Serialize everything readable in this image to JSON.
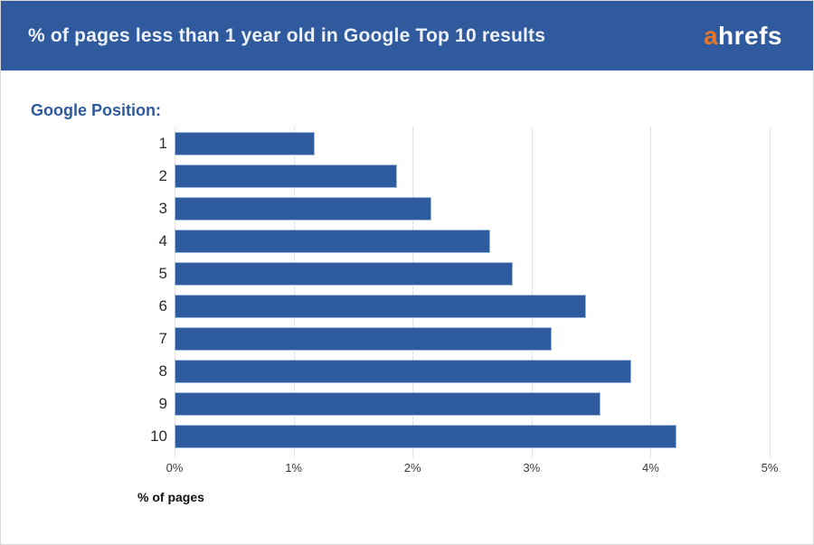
{
  "header": {
    "title": "% of pages less than 1 year old in Google Top 10 results",
    "logo_a": "a",
    "logo_rest": "hrefs"
  },
  "axis_group_label": "Google Position:",
  "chart_data": {
    "type": "bar",
    "orientation": "horizontal",
    "title": "% of pages less than 1 year old in Google Top 10 results",
    "ylabel": "Google Position",
    "xlabel": "% of pages",
    "categories": [
      "1",
      "2",
      "3",
      "4",
      "5",
      "6",
      "7",
      "8",
      "9",
      "10"
    ],
    "values": [
      1.18,
      1.87,
      2.16,
      2.65,
      2.84,
      3.46,
      3.17,
      3.84,
      3.58,
      4.22
    ],
    "xlim": [
      0,
      5
    ],
    "x_ticks": [
      "0%",
      "1%",
      "2%",
      "3%",
      "4%",
      "5%"
    ],
    "grid": "vertical-dotted"
  },
  "colors": {
    "header_bg": "#2f5a9d",
    "bar_fill": "#2d5b9d",
    "bar_border": "#a3bcda",
    "logo_accent": "#e8752b",
    "label_blue": "#2e5a9e",
    "gridline": "#c9c9c9"
  }
}
